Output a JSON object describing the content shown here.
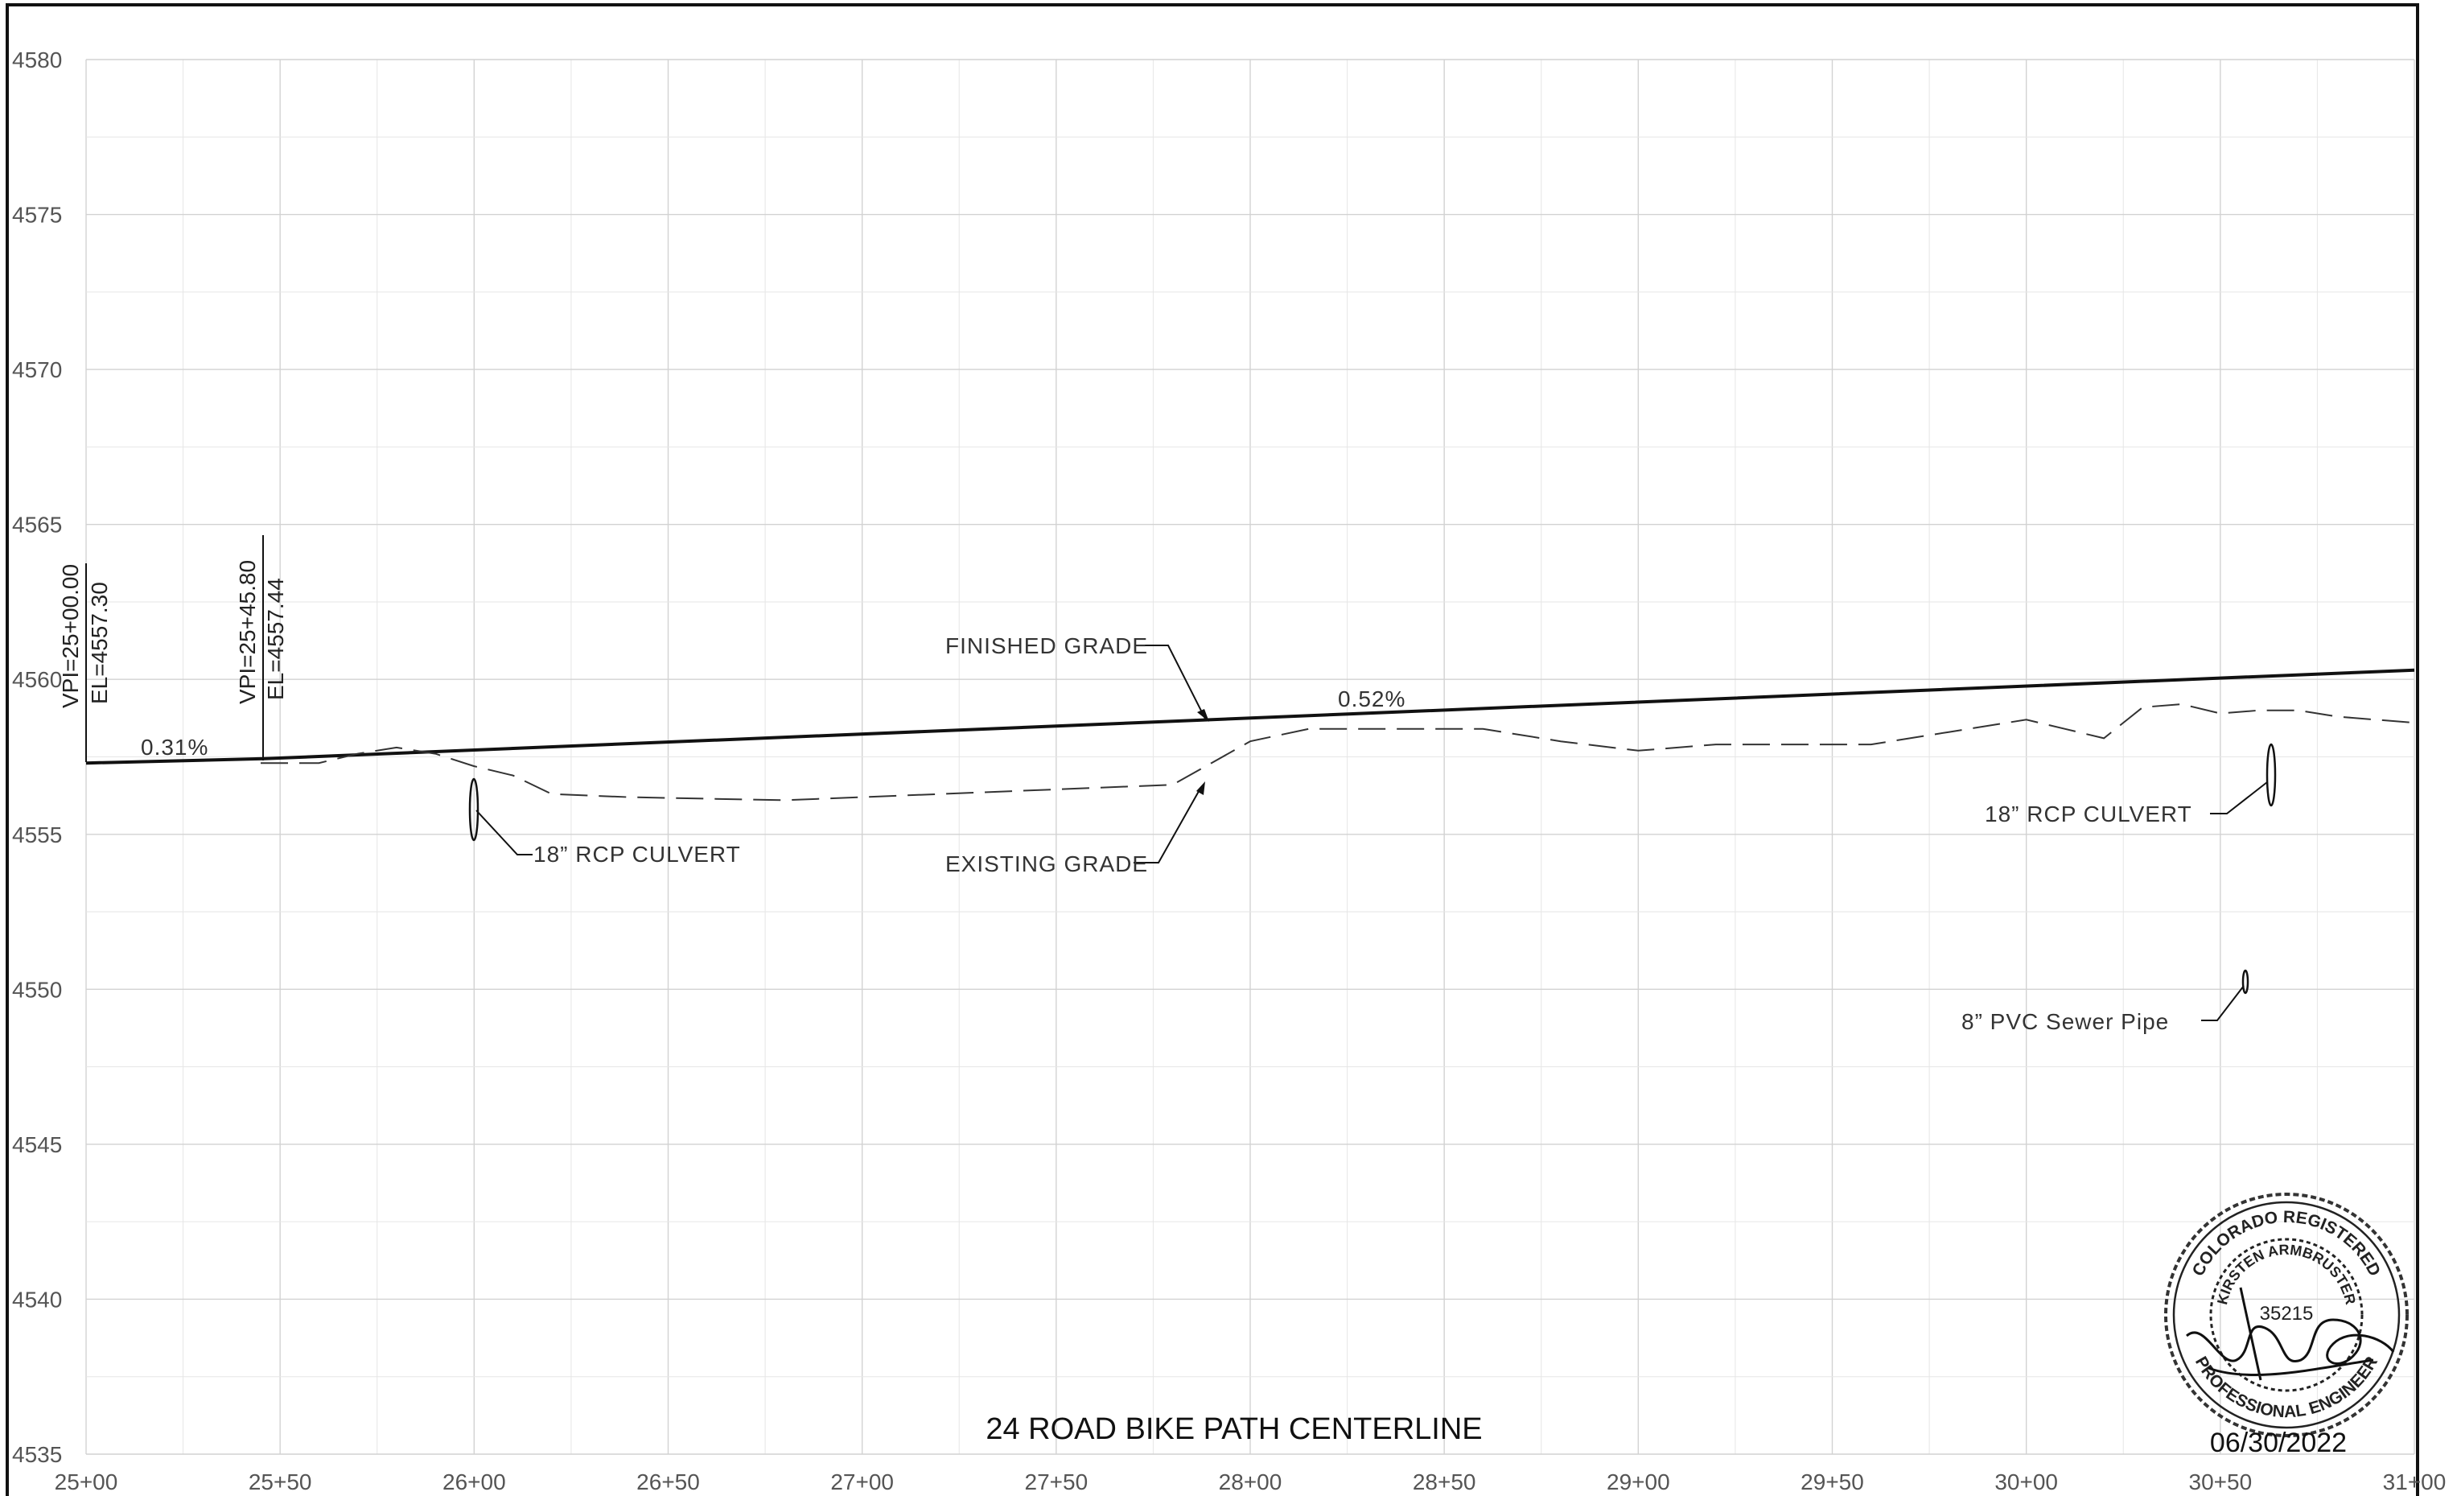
{
  "drawing": {
    "title": "24 ROAD BIKE PATH CENTERLINE",
    "date": "06/30/2022"
  },
  "axes": {
    "y_ticks": [
      "4580",
      "4575",
      "4570",
      "4565",
      "4560",
      "4555",
      "4550",
      "4545",
      "4540",
      "4535"
    ],
    "x_ticks": [
      "25+00",
      "25+50",
      "26+00",
      "26+50",
      "27+00",
      "27+50",
      "28+00",
      "28+50",
      "29+00",
      "29+50",
      "30+00",
      "30+50",
      "31+00"
    ]
  },
  "labels": {
    "finished_grade": "FINISHED GRADE",
    "existing_grade": "EXISTING GRADE",
    "culvert_left": "18” RCP CULVERT",
    "culvert_right": "18” RCP CULVERT",
    "sewer": "8” PVC Sewer Pipe",
    "slope_1": "0.31%",
    "slope_2": "0.52%",
    "vpi_1_station": "VPI=25+00.00",
    "vpi_1_elev": "EL=4557.30",
    "vpi_2_station": "VPI=25+45.80",
    "vpi_2_elev": "EL=4557.44"
  },
  "seal": {
    "top_text": "COLORADO REGISTERED",
    "name_text": "KIRSTEN ARMBRUSTER",
    "number": "35215",
    "bottom_text": "PROFESSIONAL ENGINEER"
  },
  "chart_data": {
    "type": "line",
    "xlabel": "",
    "ylabel": "",
    "xlim": [
      2500,
      3100
    ],
    "ylim": [
      4535,
      4580
    ],
    "grid": true,
    "series": [
      {
        "name": "FINISHED GRADE",
        "style": "solid",
        "x": [
          2500,
          2545.8,
          3100
        ],
        "y": [
          4557.3,
          4557.44,
          4560.3
        ]
      },
      {
        "name": "EXISTING GRADE",
        "style": "dashed",
        "x": [
          2545,
          2560,
          2570,
          2580,
          2590,
          2600,
          2610,
          2620,
          2640,
          2680,
          2720,
          2760,
          2780,
          2790,
          2800,
          2815,
          2860,
          2880,
          2900,
          2920,
          2940,
          2960,
          2980,
          3000,
          3010,
          3020,
          3030,
          3040,
          3050,
          3060,
          3070,
          3080,
          3090,
          3100
        ],
        "y": [
          4557.3,
          4557.3,
          4557.6,
          4557.8,
          4557.6,
          4557.2,
          4556.9,
          4556.3,
          4556.2,
          4556.1,
          4556.3,
          4556.5,
          4556.6,
          4557.3,
          4558.0,
          4558.4,
          4558.4,
          4558.0,
          4557.7,
          4557.9,
          4557.9,
          4557.9,
          4558.3,
          4558.7,
          4558.4,
          4558.1,
          4559.1,
          4559.2,
          4558.9,
          4559.0,
          4559.0,
          4558.8,
          4558.7,
          4558.6
        ]
      }
    ],
    "features": [
      {
        "name": "18” RCP CULVERT",
        "x": 2600,
        "y": 4555.9
      },
      {
        "name": "18” RCP CULVERT",
        "x": 3065,
        "y": 4557.7
      },
      {
        "name": "8” PVC Sewer Pipe",
        "x": 3057,
        "y": 4550.2
      }
    ]
  }
}
